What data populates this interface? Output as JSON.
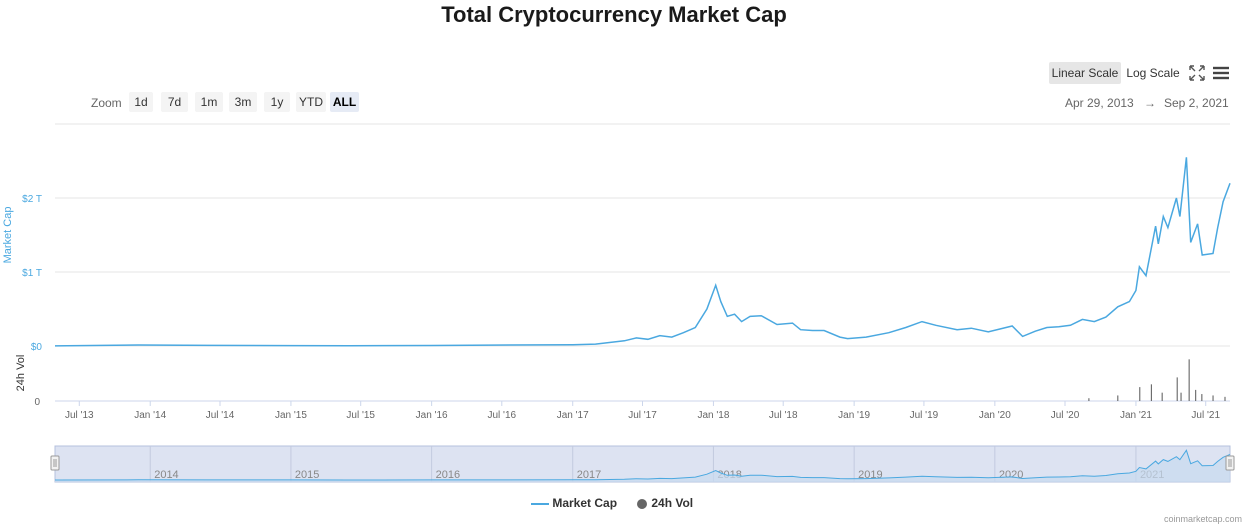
{
  "chart_data": {
    "type": "line",
    "title": "Total Cryptocurrency Market Cap",
    "ylabel": "Market Cap",
    "y2label": "24h Vol",
    "yticks": [
      "$0",
      "$1 T",
      "$2 T"
    ],
    "ytick_values": [
      0,
      1,
      2
    ],
    "y_unit": "T",
    "ylim": [
      0,
      2.75
    ],
    "vol_ytick": "0",
    "xticks": [
      "Jul '13",
      "Jan '14",
      "Jul '14",
      "Jan '15",
      "Jul '15",
      "Jan '16",
      "Jul '16",
      "Jan '17",
      "Jul '17",
      "Jan '18",
      "Jul '18",
      "Jan '19",
      "Jul '19",
      "Jan '20",
      "Jul '20",
      "Jan '21",
      "Jul '21"
    ],
    "xtick_dates": [
      "2013-07-01",
      "2014-01-01",
      "2014-07-01",
      "2015-01-01",
      "2015-07-01",
      "2016-01-01",
      "2016-07-01",
      "2017-01-01",
      "2017-07-01",
      "2018-01-01",
      "2018-07-01",
      "2019-01-01",
      "2019-07-01",
      "2020-01-01",
      "2020-07-01",
      "2021-01-01",
      "2021-07-01"
    ],
    "xlim": [
      "2013-04-29",
      "2021-09-02"
    ],
    "grid": true,
    "legend_placement": "bottom-center",
    "series": [
      {
        "name": "Market Cap",
        "color": "#4aa8e0",
        "x": [
          "2013-04-29",
          "2013-12-01",
          "2014-06-01",
          "2015-01-01",
          "2015-06-01",
          "2016-01-01",
          "2016-06-01",
          "2017-01-01",
          "2017-03-01",
          "2017-05-15",
          "2017-06-15",
          "2017-07-15",
          "2017-08-15",
          "2017-09-15",
          "2017-10-15",
          "2017-11-15",
          "2017-12-15",
          "2018-01-07",
          "2018-01-20",
          "2018-02-06",
          "2018-02-25",
          "2018-03-15",
          "2018-04-06",
          "2018-05-05",
          "2018-06-15",
          "2018-07-25",
          "2018-08-15",
          "2018-09-15",
          "2018-10-15",
          "2018-11-25",
          "2018-12-15",
          "2019-02-01",
          "2019-04-01",
          "2019-05-15",
          "2019-06-26",
          "2019-08-01",
          "2019-09-25",
          "2019-11-01",
          "2019-12-15",
          "2020-02-15",
          "2020-03-13",
          "2020-04-15",
          "2020-05-15",
          "2020-06-15",
          "2020-07-15",
          "2020-08-15",
          "2020-09-15",
          "2020-10-15",
          "2020-11-15",
          "2020-12-15",
          "2021-01-01",
          "2021-01-10",
          "2021-01-27",
          "2021-02-21",
          "2021-02-28",
          "2021-03-13",
          "2021-03-25",
          "2021-04-16",
          "2021-04-25",
          "2021-05-12",
          "2021-05-23",
          "2021-06-10",
          "2021-06-22",
          "2021-07-20",
          "2021-08-01",
          "2021-08-15",
          "2021-09-02"
        ],
        "y": [
          0.0015,
          0.013,
          0.008,
          0.005,
          0.004,
          0.007,
          0.012,
          0.018,
          0.025,
          0.07,
          0.11,
          0.09,
          0.14,
          0.12,
          0.18,
          0.25,
          0.5,
          0.82,
          0.6,
          0.4,
          0.43,
          0.33,
          0.4,
          0.41,
          0.29,
          0.31,
          0.22,
          0.21,
          0.21,
          0.12,
          0.1,
          0.12,
          0.18,
          0.25,
          0.33,
          0.28,
          0.22,
          0.24,
          0.19,
          0.27,
          0.13,
          0.2,
          0.25,
          0.26,
          0.28,
          0.36,
          0.33,
          0.39,
          0.53,
          0.6,
          0.75,
          1.07,
          0.95,
          1.62,
          1.38,
          1.75,
          1.6,
          2.0,
          1.75,
          2.55,
          1.4,
          1.65,
          1.23,
          1.25,
          1.6,
          1.95,
          2.2
        ]
      },
      {
        "name": "24h Vol",
        "color": "#555555",
        "x": [
          "2020-09-01",
          "2020-11-15",
          "2021-01-11",
          "2021-02-10",
          "2021-03-10",
          "2021-04-18",
          "2021-04-28",
          "2021-05-19",
          "2021-06-05",
          "2021-06-21",
          "2021-07-20",
          "2021-08-20"
        ],
        "y": [
          0.002,
          0.004,
          0.01,
          0.012,
          0.006,
          0.017,
          0.006,
          0.03,
          0.008,
          0.005,
          0.004,
          0.003
        ],
        "vlim": [
          0,
          0.036
        ]
      }
    ]
  },
  "controls": {
    "zoom_label": "Zoom",
    "zoom_buttons": [
      {
        "label": "1d"
      },
      {
        "label": "7d"
      },
      {
        "label": "1m"
      },
      {
        "label": "3m"
      },
      {
        "label": "1y"
      },
      {
        "label": "YTD"
      },
      {
        "label": "ALL"
      }
    ],
    "zoom_active": "ALL",
    "scale_buttons": [
      {
        "label": "Linear Scale"
      },
      {
        "label": "Log Scale"
      }
    ],
    "scale_active": "Linear Scale",
    "range_from": "Apr 29, 2013",
    "range_arrow": "→",
    "range_to": "Sep 2, 2021",
    "fullscreen_icon": "fullscreen-icon",
    "menu_icon": "hamburger-menu-icon"
  },
  "navigator": {
    "years": [
      "2014",
      "2015",
      "2016",
      "2017",
      "2018",
      "2019",
      "2020",
      "2021"
    ],
    "year_dates": [
      "2014-01-01",
      "2015-01-01",
      "2016-01-01",
      "2017-01-01",
      "2018-01-01",
      "2019-01-01",
      "2020-01-01",
      "2021-01-01"
    ]
  },
  "legend": {
    "items": [
      {
        "label": "Market Cap",
        "color": "#4aa8e0"
      },
      {
        "label": "24h Vol",
        "color": "#666666"
      }
    ]
  },
  "credit": "coinmarketcap.com"
}
